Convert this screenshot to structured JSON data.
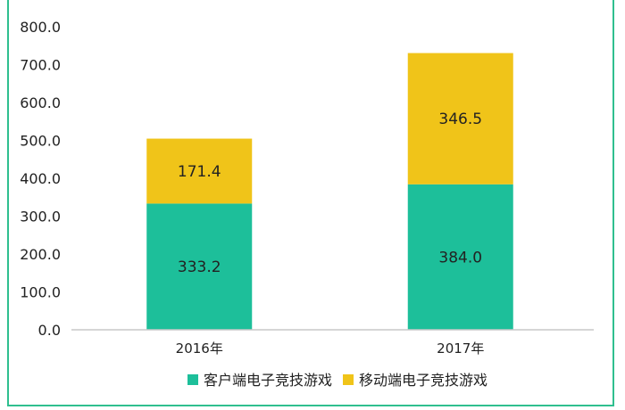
{
  "chart_data": {
    "type": "bar",
    "stacked": true,
    "categories": [
      "2016年",
      "2017年"
    ],
    "series": [
      {
        "name": "客户端电子竞技游戏",
        "values": [
          333.2,
          384.0
        ],
        "color": "#1dbf9a"
      },
      {
        "name": "移动端电子竞技游戏",
        "values": [
          171.4,
          346.5
        ],
        "color": "#f0c419"
      }
    ],
    "ylim": [
      0,
      800
    ],
    "yticks": [
      "0.0",
      "100.0",
      "200.0",
      "300.0",
      "400.0",
      "500.0",
      "600.0",
      "700.0",
      "800.0"
    ],
    "grid": false,
    "legend_position": "bottom"
  }
}
